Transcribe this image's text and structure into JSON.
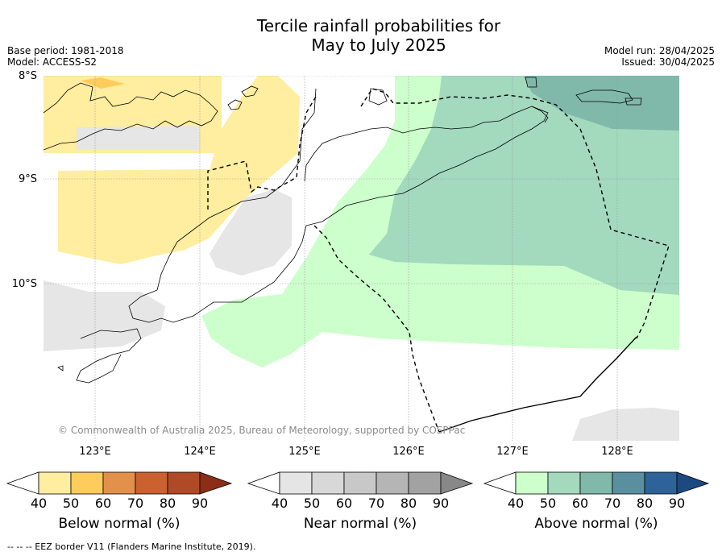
{
  "title_line1": "Tercile rainfall probabilities for",
  "title_line2": "May to July 2025",
  "meta_left": {
    "base_period": "Base period: 1981-2018",
    "model": "Model: ACCESS-S2"
  },
  "meta_right": {
    "model_run": "Model run: 28/04/2025",
    "issued": "Issued: 30/04/2025"
  },
  "lat_labels": [
    "8°S",
    "9°S",
    "10°S"
  ],
  "lon_labels": [
    "123°E",
    "124°E",
    "125°E",
    "126°E",
    "127°E",
    "128°E"
  ],
  "copyright": "© Commonwealth of Australia 2025, Bureau of Meteorology, supported by COSPPac",
  "colorbars": [
    {
      "label": "Below normal (%)",
      "ticks": [
        "40",
        "50",
        "60",
        "70",
        "80",
        "90"
      ],
      "colors": [
        "#ffffff",
        "#ffeda0",
        "#fecc5c",
        "#e2904a",
        "#cc6130",
        "#b04a26",
        "#8c2d17"
      ]
    },
    {
      "label": "Near normal (%)",
      "ticks": [
        "40",
        "50",
        "60",
        "70",
        "80",
        "90"
      ],
      "colors": [
        "#ffffff",
        "#e5e5e5",
        "#d8d8d8",
        "#c8c8c8",
        "#b5b5b5",
        "#a2a2a2",
        "#888888"
      ]
    },
    {
      "label": "Above normal (%)",
      "ticks": [
        "40",
        "50",
        "60",
        "70",
        "80",
        "90"
      ],
      "colors": [
        "#ffffff",
        "#ccffcc",
        "#a3d9bd",
        "#80b8aa",
        "#5a8fa0",
        "#2d6398",
        "#1b4a80"
      ]
    }
  ],
  "footer": "--  --  -- EEZ border V11 (Flanders Marine Institute, 2019)."
}
